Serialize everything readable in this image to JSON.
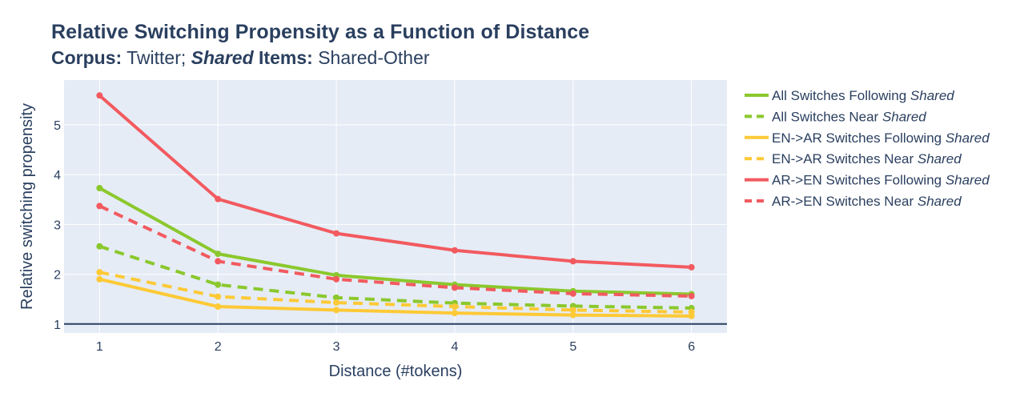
{
  "title": {
    "main": "Relative Switching Propensity as a Function of Distance",
    "corpus_label": "Corpus:",
    "corpus_value": "Twitter;",
    "shared_label_italic": "Shared",
    "items_label": "Items:",
    "items_value": "Shared-Other"
  },
  "chart_data": {
    "type": "line",
    "x": [
      1,
      2,
      3,
      4,
      5,
      6
    ],
    "xlabel": "Distance (#tokens)",
    "ylabel": "Relative switching propensity",
    "xlim": [
      0.7,
      6.3
    ],
    "ylim": [
      0.82,
      5.9
    ],
    "xticks": [
      1,
      2,
      3,
      4,
      5,
      6
    ],
    "yticks": [
      1,
      2,
      3,
      4,
      5
    ],
    "reference_line_y": 1,
    "grid": true,
    "legend_position": "right",
    "series": [
      {
        "name_prefix": "All Switches Following",
        "name_italic": "Shared",
        "color": "#8bc82d",
        "dash": "solid",
        "values": [
          3.73,
          2.41,
          1.98,
          1.79,
          1.66,
          1.6
        ]
      },
      {
        "name_prefix": "All Switches Near",
        "name_italic": "Shared",
        "color": "#8bc82d",
        "dash": "dashed",
        "values": [
          2.56,
          1.79,
          1.53,
          1.42,
          1.36,
          1.32
        ]
      },
      {
        "name_prefix": "EN->AR Switches Following",
        "name_italic": "Shared",
        "color": "#fdc936",
        "dash": "solid",
        "values": [
          1.9,
          1.35,
          1.28,
          1.22,
          1.18,
          1.16
        ]
      },
      {
        "name_prefix": "EN->AR Switches Near",
        "name_italic": "Shared",
        "color": "#fdc936",
        "dash": "dashed",
        "values": [
          2.04,
          1.55,
          1.43,
          1.35,
          1.28,
          1.24
        ]
      },
      {
        "name_prefix": "AR->EN Switches Following",
        "name_italic": "Shared",
        "color": "#f25a5f",
        "dash": "solid",
        "values": [
          5.59,
          3.51,
          2.82,
          2.48,
          2.26,
          2.14
        ]
      },
      {
        "name_prefix": "AR->EN Switches Near",
        "name_italic": "Shared",
        "color": "#f25a5f",
        "dash": "dashed",
        "values": [
          3.37,
          2.26,
          1.9,
          1.73,
          1.61,
          1.56
        ]
      }
    ]
  }
}
